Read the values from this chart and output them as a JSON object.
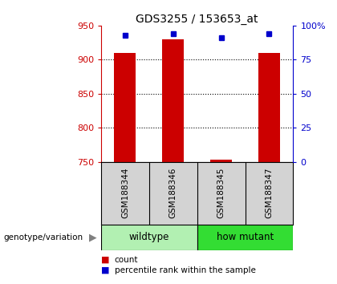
{
  "title": "GDS3255 / 153653_at",
  "samples": [
    "GSM188344",
    "GSM188346",
    "GSM188345",
    "GSM188347"
  ],
  "counts": [
    910,
    930,
    753,
    910
  ],
  "percentiles": [
    93,
    94,
    91,
    94
  ],
  "ylim_left": [
    750,
    950
  ],
  "ylim_right": [
    0,
    100
  ],
  "yticks_left": [
    750,
    800,
    850,
    900,
    950
  ],
  "yticks_right": [
    0,
    25,
    50,
    75,
    100
  ],
  "yticklabels_right": [
    "0",
    "25",
    "50",
    "75",
    "100%"
  ],
  "bar_color": "#cc0000",
  "dot_color": "#0000cc",
  "groups": [
    {
      "label": "wildtype",
      "indices": [
        0,
        1
      ],
      "color": "#b2f0b2"
    },
    {
      "label": "how mutant",
      "indices": [
        2,
        3
      ],
      "color": "#33dd33"
    }
  ],
  "group_label": "genotype/variation",
  "legend_count_label": "count",
  "legend_pct_label": "percentile rank within the sample",
  "background_color": "#ffffff",
  "left_axis_color": "#cc0000",
  "right_axis_color": "#0000cc",
  "cell_bg_color": "#d3d3d3",
  "bar_width": 0.45
}
